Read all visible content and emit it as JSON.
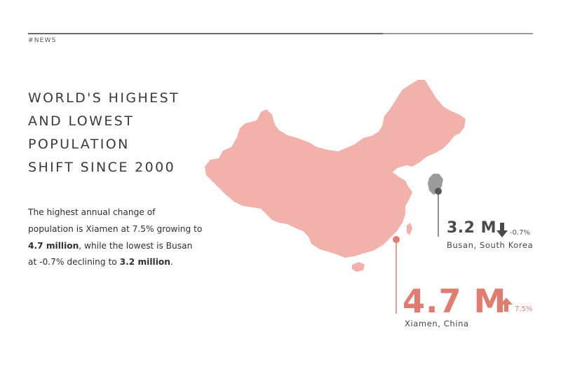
{
  "header": {
    "tag": "#NEWS"
  },
  "title": {
    "lines": [
      "WORLD'S HIGHEST",
      "AND LOWEST",
      "POPULATION",
      "SHIFT SINCE 2000"
    ]
  },
  "description": {
    "part1": "The highest annual change of population is Xiamen at 7.5% growing to ",
    "bold1": "4.7 million",
    "part2": ", while the lowest is Busan at -0.7% declining to ",
    "bold2": "3.2 million",
    "part3": "."
  },
  "busan": {
    "value": "3.2 M",
    "change": "-0.7%",
    "label": "Busan, South Korea",
    "direction": "down",
    "color": "#4a4a4a"
  },
  "xiamen": {
    "value": "4.7 M",
    "change": "7.5%",
    "label": "Xiamen, China",
    "direction": "up",
    "color": "#e07d70"
  },
  "colors": {
    "china_fill": "#f2b1aa",
    "korea_fill": "#9b9b9b",
    "accent": "#e07d70"
  },
  "icons": {
    "busan_arrow": "arrow-down-icon",
    "xiamen_arrow": "arrow-up-icon"
  }
}
